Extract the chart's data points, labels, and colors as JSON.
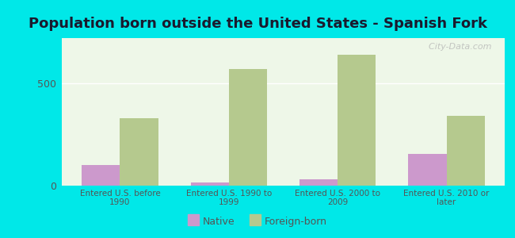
{
  "title": "Population born outside the United States - Spanish Fork",
  "categories": [
    "Entered U.S. before\n1990",
    "Entered U.S. 1990 to\n1999",
    "Entered U.S. 2000 to\n2009",
    "Entered U.S. 2010 or\nlater"
  ],
  "native_values": [
    100,
    15,
    30,
    155
  ],
  "foreign_values": [
    330,
    570,
    640,
    340
  ],
  "native_color": "#cc99cc",
  "foreign_color": "#b5c98e",
  "background_outer": "#00e8e8",
  "background_inner": "#eef7e8",
  "ylim": [
    0,
    720
  ],
  "yticks": [
    0,
    500
  ],
  "bar_width": 0.35,
  "title_fontsize": 13,
  "legend_native": "Native",
  "legend_foreign": "Foreign-born",
  "watermark": "  City-Data.com"
}
